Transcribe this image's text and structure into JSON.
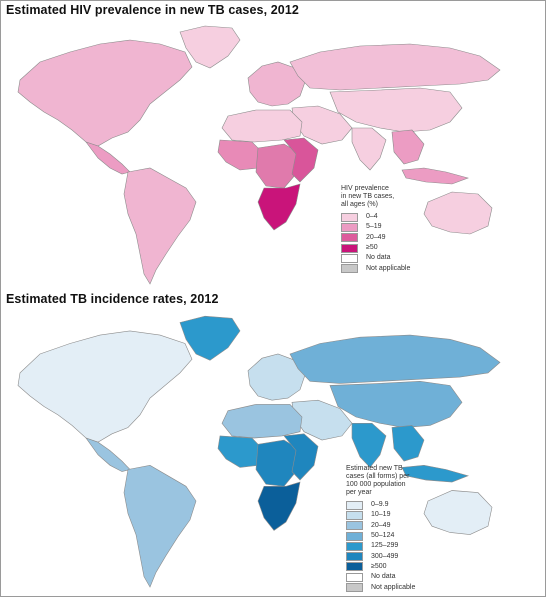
{
  "maps": [
    {
      "title": "Estimated HIV prevalence in new TB cases, 2012",
      "legend": {
        "title_lines": [
          "HIV prevalence",
          "in new TB cases,",
          "all ages (%)"
        ],
        "items": [
          {
            "label": "0–4",
            "color": "#f6cfe0"
          },
          {
            "label": "5–19",
            "color": "#ec9cc3"
          },
          {
            "label": "20–49",
            "color": "#dd5c9c"
          },
          {
            "label": "≥50",
            "color": "#c9147a"
          },
          {
            "label": "No data",
            "color": "#ffffff"
          },
          {
            "label": "Not applicable",
            "color": "#c8c8c8"
          }
        ]
      },
      "region_colors": {
        "north_america": "#f0b5d1",
        "greenland": "#f6cfe0",
        "central_america": "#ec9cc3",
        "south_america": "#f0b5d1",
        "europe": "#f0b5d1",
        "russia": "#f2bfd7",
        "asia": "#f6cfe0",
        "middle_east": "#f6cfe0",
        "north_africa": "#f6cfe0",
        "west_africa": "#e88ab7",
        "central_africa": "#e07aac",
        "east_africa": "#d9559a",
        "southern_africa": "#c9147a",
        "south_asia": "#f6cfe0",
        "se_asia": "#ec9cc3",
        "australia": "#f6cfe0",
        "indonesia": "#ec9cc3"
      }
    },
    {
      "title": "Estimated TB incidence rates, 2012",
      "legend": {
        "title_lines": [
          "Estimated new TB",
          "cases (all forms) per",
          "100 000 population",
          "per year"
        ],
        "items": [
          {
            "label": "0–9.9",
            "color": "#e3eef6"
          },
          {
            "label": "10–19",
            "color": "#c6dfee"
          },
          {
            "label": "20–49",
            "color": "#9ac4e0"
          },
          {
            "label": "50–124",
            "color": "#6fb0d7"
          },
          {
            "label": "125–299",
            "color": "#2c99cc"
          },
          {
            "label": "300–499",
            "color": "#1f86be"
          },
          {
            "label": "≥500",
            "color": "#0b5f9a"
          },
          {
            "label": "No data",
            "color": "#ffffff"
          },
          {
            "label": "Not applicable",
            "color": "#c8c8c8"
          }
        ]
      },
      "region_colors": {
        "north_america": "#e3eef6",
        "greenland": "#2c99cc",
        "central_america": "#9ac4e0",
        "south_america": "#9ac4e0",
        "europe": "#c6dfee",
        "russia": "#6fb0d7",
        "asia": "#6fb0d7",
        "middle_east": "#c6dfee",
        "north_africa": "#9ac4e0",
        "west_africa": "#2c99cc",
        "central_africa": "#1f86be",
        "east_africa": "#1f86be",
        "southern_africa": "#0b5f9a",
        "south_asia": "#2c99cc",
        "se_asia": "#2c99cc",
        "australia": "#e3eef6",
        "indonesia": "#2c99cc"
      }
    }
  ]
}
